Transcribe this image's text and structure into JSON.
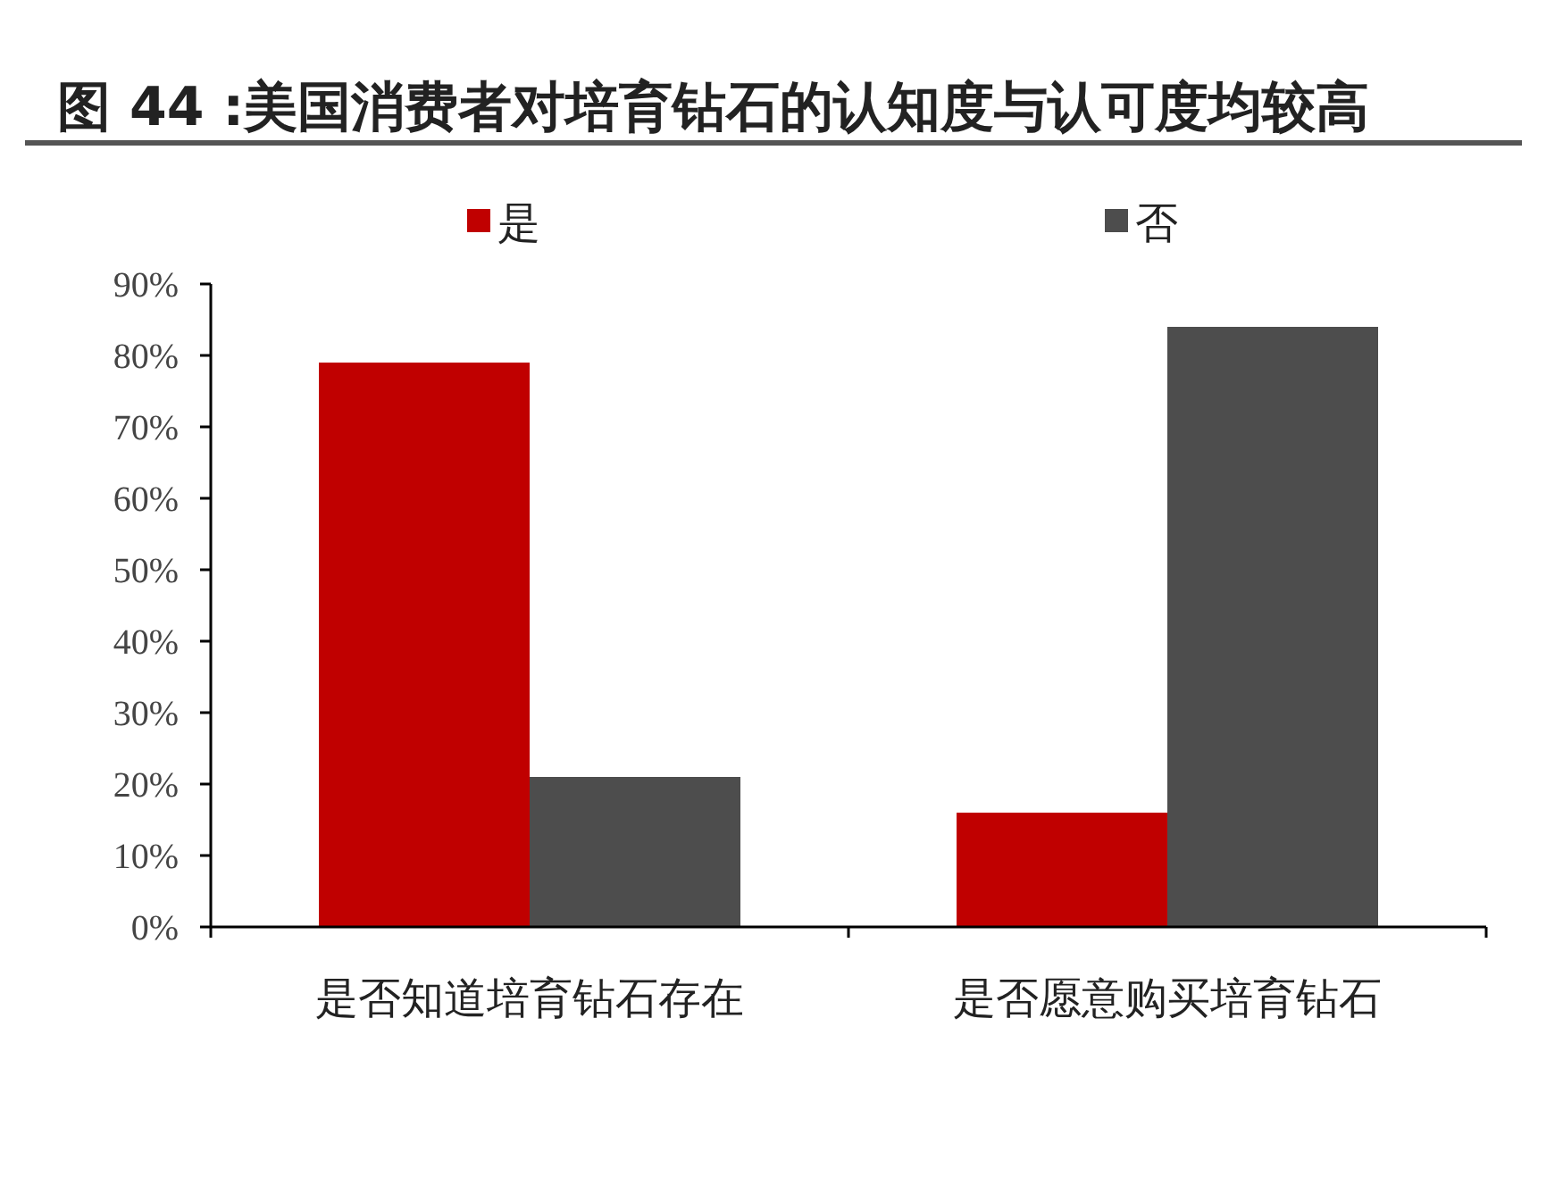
{
  "chart_data": {
    "type": "bar",
    "title": "图 44 :美国消费者对培育钻石的认知度与认可度均较高",
    "categories": [
      "是否知道培育钻石存在",
      "是否愿意购买培育钻石"
    ],
    "series": [
      {
        "name": "是",
        "color": "#c00000",
        "values": [
          79,
          16
        ]
      },
      {
        "name": "否",
        "color": "#4d4d4d",
        "values": [
          21,
          84
        ]
      }
    ],
    "ylim": [
      0,
      90
    ],
    "yticks": [
      {
        "value": 0,
        "label": "0%"
      },
      {
        "value": 10,
        "label": "10%"
      },
      {
        "value": 20,
        "label": "20%"
      },
      {
        "value": 30,
        "label": "30%"
      },
      {
        "value": 40,
        "label": "40%"
      },
      {
        "value": 50,
        "label": "50%"
      },
      {
        "value": 60,
        "label": "60%"
      },
      {
        "value": 70,
        "label": "70%"
      },
      {
        "value": 80,
        "label": "80%"
      },
      {
        "value": 90,
        "label": "90%"
      }
    ],
    "legend": "top",
    "grid": false
  }
}
